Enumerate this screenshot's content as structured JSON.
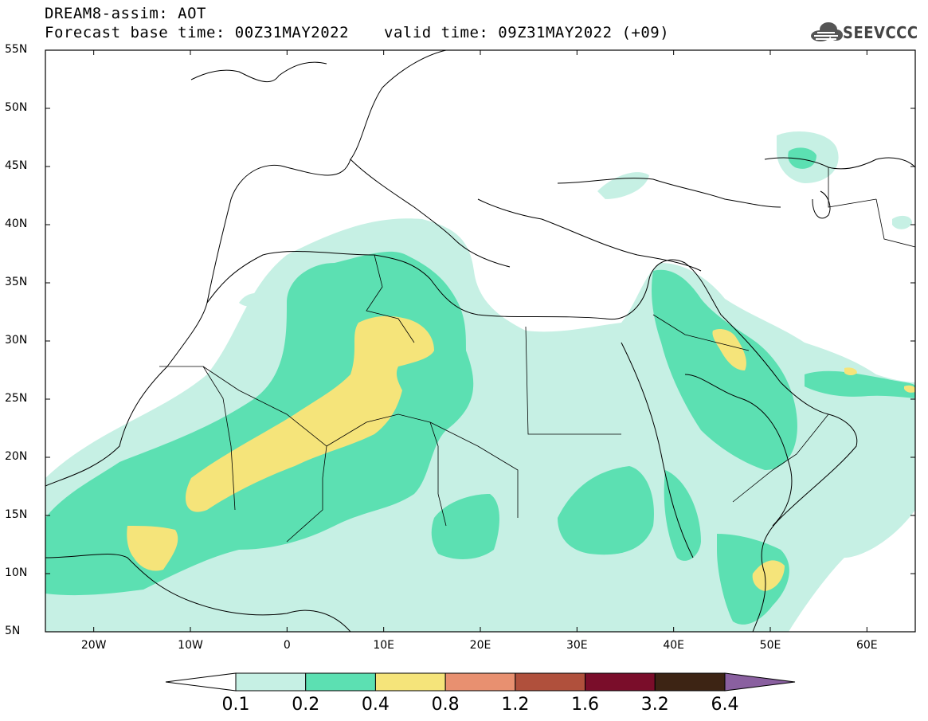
{
  "header": {
    "title": "DREAM8-assim: AOT",
    "base_time": "Forecast base time: 00Z31MAY2022",
    "valid_time": "valid time: 09Z31MAY2022 (+09)",
    "logo_text": "SEEVCCC"
  },
  "map": {
    "lat_labels": [
      "55N",
      "50N",
      "45N",
      "40N",
      "35N",
      "30N",
      "25N",
      "20N",
      "15N",
      "10N",
      "5N"
    ],
    "lat_values": [
      55,
      50,
      45,
      40,
      35,
      30,
      25,
      20,
      15,
      10,
      5
    ],
    "lon_labels": [
      "20W",
      "10W",
      "0",
      "10E",
      "20E",
      "30E",
      "40E",
      "50E",
      "60E"
    ],
    "lon_values": [
      -20,
      -10,
      0,
      10,
      20,
      30,
      40,
      50,
      60
    ],
    "extent": {
      "lon_min": -25,
      "lon_max": 65,
      "lat_min": 5,
      "lat_max": 55
    },
    "field": "Aerosol optical thickness (AOT)"
  },
  "colorbar": {
    "labels": [
      "0.1",
      "0.2",
      "0.4",
      "0.8",
      "1.2",
      "1.6",
      "3.2",
      "6.4"
    ],
    "colors": [
      "#ffffff",
      "#c6f0e4",
      "#5ce0b2",
      "#f5e47a",
      "#e89070",
      "#b0503c",
      "#7a0d2a",
      "#3d2414",
      "#8a60a0"
    ]
  },
  "colors": {
    "level_01": "#c6f0e4",
    "level_02": "#5ce0b2",
    "level_04": "#f5e47a",
    "border": "#000000"
  }
}
